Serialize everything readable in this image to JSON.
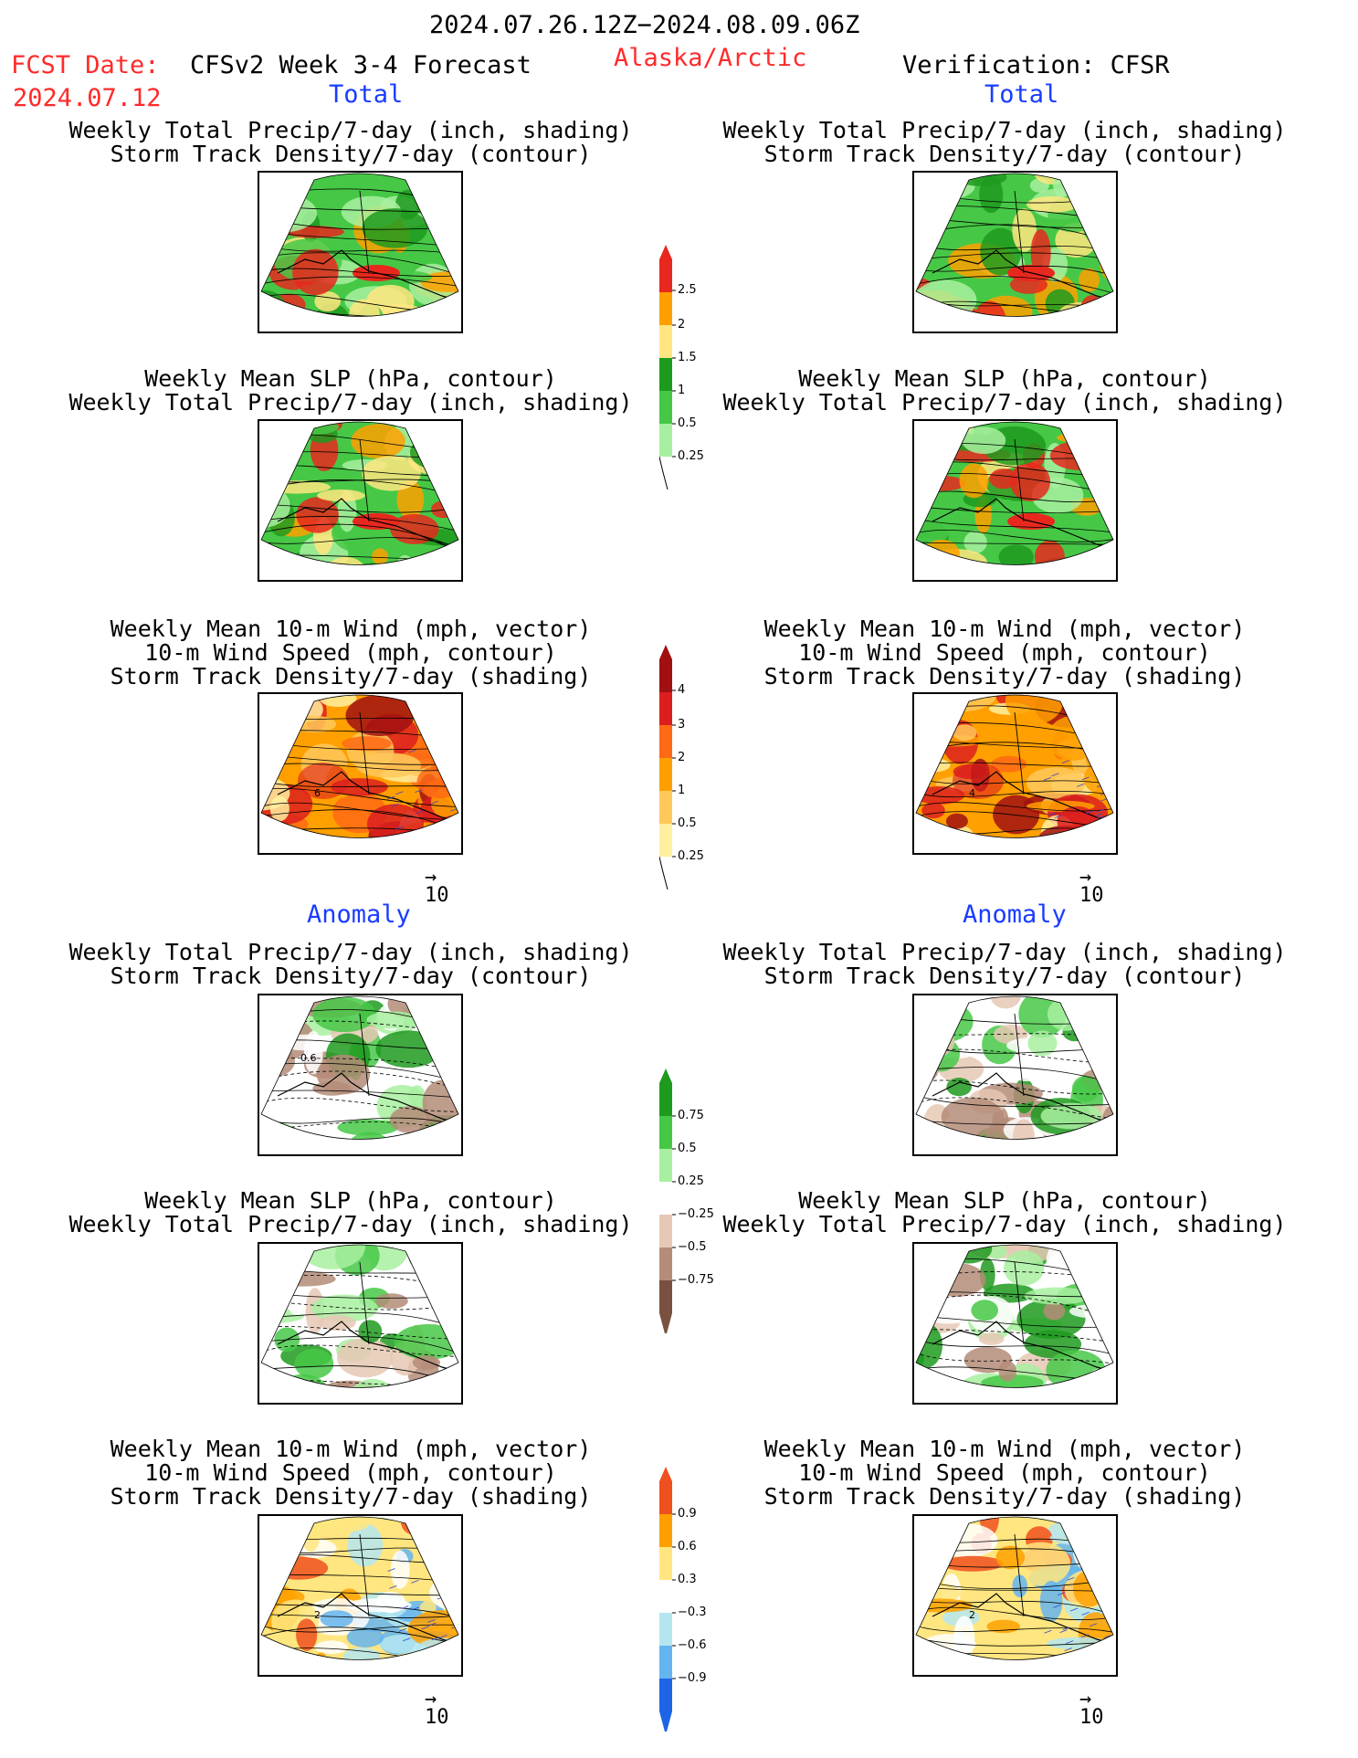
{
  "header": {
    "period": "2024.07.26.12Z−2024.08.09.06Z",
    "fcst_label": "FCST Date:",
    "fcst_date": "2024.07.12",
    "model": "CFSv2 Week 3-4 Forecast",
    "region": "Alaska/Arctic",
    "verification": "Verification: CFSR"
  },
  "sections": {
    "total": "Total",
    "anomaly": "Anomaly"
  },
  "captions": {
    "precip_storm": [
      "Weekly Total Precip/7-day (inch, shading)",
      "Storm Track Density/7-day (contour)"
    ],
    "slp_precip": [
      "Weekly Mean SLP (hPa, contour)",
      "Weekly Total Precip/7-day (inch, shading)"
    ],
    "wind_storm": [
      "Weekly Mean 10-m Wind (mph, vector)",
      "10-m Wind Speed (mph, contour)",
      "Storm Track Density/7-day (shading)"
    ]
  },
  "vector_ref": "10",
  "colorbars": {
    "precip_total": {
      "labels": [
        "2.5",
        "2",
        "1.5",
        "1",
        "0.5",
        "0.25"
      ],
      "colors": [
        "#e8281e",
        "#ffa000",
        "#ffe680",
        "#1e9a1e",
        "#46c846",
        "#a8f0a0"
      ]
    },
    "storm_total": {
      "labels": [
        "4",
        "3",
        "2",
        "1",
        "0.5",
        "0.25"
      ],
      "colors": [
        "#a01010",
        "#dc1e1e",
        "#ff6a14",
        "#ffa000",
        "#ffc85a",
        "#fff0a0"
      ]
    },
    "precip_anom": {
      "labels": [
        "0.75",
        "0.5",
        "0.25",
        "−0.25",
        "−0.5",
        "−0.75"
      ],
      "colors": [
        "#1e9a1e",
        "#46c846",
        "#a8f0a0",
        "#ffffff",
        "#e6c8b4",
        "#b48c78",
        "#7a5040"
      ]
    },
    "storm_anom": {
      "labels": [
        "0.9",
        "0.6",
        "0.3",
        "−0.3",
        "−0.6",
        "−0.9"
      ],
      "colors": [
        "#f0501e",
        "#ffa000",
        "#ffe680",
        "#ffffff",
        "#b4e6f0",
        "#64b4f0",
        "#1e64e6"
      ]
    }
  },
  "panel_labels": {
    "left_wind_total": "6",
    "right_wind_total": "4",
    "left_precip_anom": "0.6",
    "left_wind_anom": "2",
    "right_wind_anom": "2"
  },
  "colors": {
    "red": "#ff2a2a",
    "blue": "#1a3cff"
  }
}
